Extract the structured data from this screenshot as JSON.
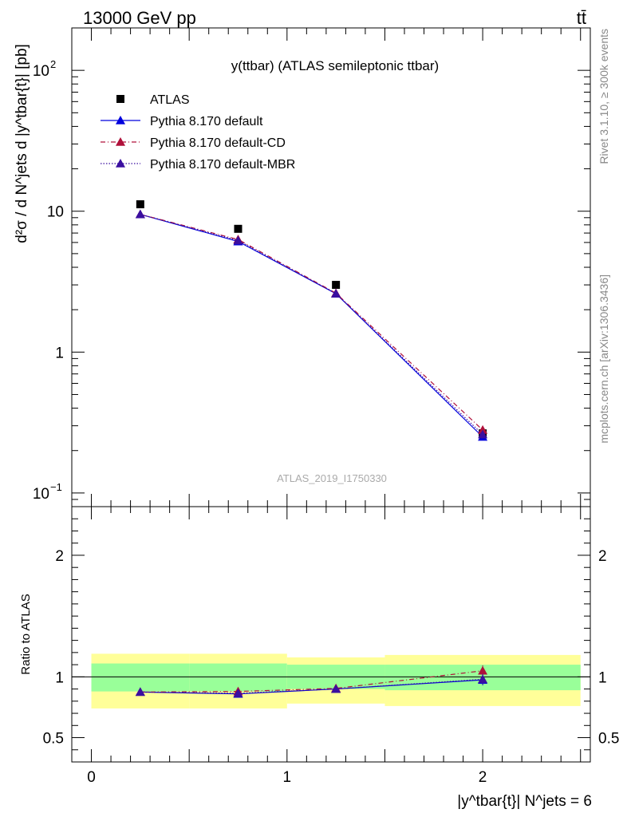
{
  "header": {
    "energy_label": "13000 GeV pp",
    "process_label": "tt̄"
  },
  "side_labels": {
    "rivet": "Rivet 3.1.10, ≥ 300k events",
    "source": "mcplots.cern.ch [arXiv:1306.3436]"
  },
  "chart_data": [
    {
      "type": "scatter",
      "panel": "main",
      "title": "y(ttbar) (ATLAS semileptonic ttbar)",
      "watermark": "ATLAS_2019_I1750330",
      "ylabel": "d²σ / d N^jets d |y^tbar{t}| [pb]",
      "yscale": "log",
      "ylim": [
        0.08,
        200
      ],
      "xlim": [
        -0.1,
        2.55
      ],
      "y_ticks": [
        {
          "value": 0.1,
          "label": "10",
          "sup": "−1"
        },
        {
          "value": 1,
          "label": "1",
          "sup": ""
        },
        {
          "value": 10,
          "label": "10",
          "sup": ""
        },
        {
          "value": 100,
          "label": "10",
          "sup": "2"
        }
      ],
      "legend_position": "top-left",
      "legend": [
        "ATLAS",
        "Pythia 8.170 default",
        "Pythia 8.170 default-CD",
        "Pythia 8.170 default-MBR"
      ],
      "series": [
        {
          "name": "ATLAS",
          "color": "#000000",
          "marker": "square",
          "line": "none",
          "x": [
            0.25,
            0.75,
            1.25,
            2.0
          ],
          "y": [
            11.2,
            7.5,
            3.0,
            0.265
          ],
          "yerr": [
            0.2,
            0.15,
            0.06,
            0.01
          ]
        },
        {
          "name": "Pythia 8.170 default",
          "color": "#0000dd",
          "marker": "triangle",
          "line": "solid",
          "x": [
            0.25,
            0.75,
            1.25,
            2.0
          ],
          "y": [
            9.5,
            6.1,
            2.6,
            0.25
          ],
          "yerr": [
            0.05,
            0.04,
            0.02,
            0.012
          ]
        },
        {
          "name": "Pythia 8.170 default-CD",
          "color": "#b0103a",
          "marker": "triangle",
          "line": "dashdot",
          "x": [
            0.25,
            0.75,
            1.25,
            2.0
          ],
          "y": [
            9.5,
            6.3,
            2.62,
            0.28
          ],
          "yerr": [
            0.05,
            0.04,
            0.02,
            0.013
          ]
        },
        {
          "name": "Pythia 8.170 default-MBR",
          "color": "#3a0fa0",
          "marker": "triangle",
          "line": "dotted",
          "x": [
            0.25,
            0.75,
            1.25,
            2.0
          ],
          "y": [
            9.5,
            6.2,
            2.6,
            0.26
          ],
          "yerr": [
            0.05,
            0.04,
            0.02,
            0.012
          ]
        }
      ]
    },
    {
      "type": "scatter",
      "panel": "ratio",
      "ylabel": "Ratio to ATLAS",
      "xlabel": "|y^tbar{t}| N^jets = 6",
      "ylim": [
        0.3,
        2.4
      ],
      "xlim": [
        -0.1,
        2.55
      ],
      "y_ticks": [
        {
          "value": 0.5,
          "label": "0.5"
        },
        {
          "value": 1,
          "label": "1"
        },
        {
          "value": 2,
          "label": "2"
        }
      ],
      "x_ticks": [
        {
          "value": 0,
          "label": "0"
        },
        {
          "value": 1,
          "label": "1"
        },
        {
          "value": 2,
          "label": "2"
        }
      ],
      "bands": {
        "edges": [
          0,
          0.5,
          1.0,
          1.5,
          2.5
        ],
        "inner": [
          [
            0.88,
            1.11
          ],
          [
            0.88,
            1.11
          ],
          [
            0.9,
            1.1
          ],
          [
            0.89,
            1.1
          ]
        ],
        "outer": [
          [
            0.74,
            1.19
          ],
          [
            0.74,
            1.19
          ],
          [
            0.78,
            1.16
          ],
          [
            0.76,
            1.18
          ]
        ],
        "inner_color": "#99ff99",
        "outer_color": "#ffff99"
      },
      "series": [
        {
          "name": "Pythia 8.170 default",
          "color": "#0000dd",
          "marker": "triangle",
          "line": "solid",
          "x": [
            0.25,
            0.75,
            1.25,
            2.0
          ],
          "y": [
            0.875,
            0.86,
            0.9,
            0.975
          ],
          "yerr": [
            0.01,
            0.01,
            0.02,
            0.045
          ]
        },
        {
          "name": "Pythia 8.170 default-CD",
          "color": "#b0103a",
          "marker": "triangle",
          "line": "dashdot",
          "x": [
            0.25,
            0.75,
            1.25,
            2.0
          ],
          "y": [
            0.875,
            0.88,
            0.905,
            1.05
          ],
          "yerr": [
            0.01,
            0.01,
            0.02,
            0.045
          ]
        },
        {
          "name": "Pythia 8.170 default-MBR",
          "color": "#3a0fa0",
          "marker": "triangle",
          "line": "dotted",
          "x": [
            0.25,
            0.75,
            1.25,
            2.0
          ],
          "y": [
            0.875,
            0.865,
            0.9,
            0.98
          ],
          "yerr": [
            0.01,
            0.01,
            0.02,
            0.045
          ]
        }
      ]
    }
  ]
}
